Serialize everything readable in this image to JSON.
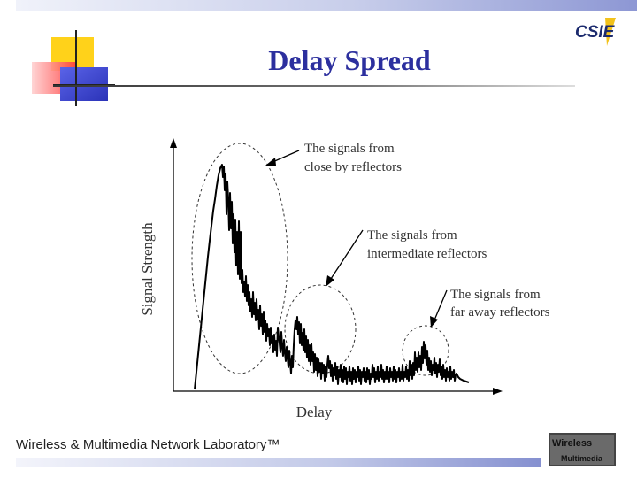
{
  "slide": {
    "title": "Delay Spread",
    "footer": "Wireless & Multimedia Network Laboratory™",
    "logo_text": "CSIE",
    "lab_logo_line1": "Wireless",
    "lab_logo_line2": "Multimedia"
  },
  "figure": {
    "ylabel": "Signal Strength",
    "xlabel": "Delay",
    "annotation_close": [
      "The signals from",
      "close by reflectors"
    ],
    "annotation_intermediate": [
      "The signals from",
      "intermediate reflectors"
    ],
    "annotation_far": [
      "The signals from",
      "far away reflectors"
    ]
  },
  "colors": {
    "title": "#2c2f9e",
    "deco_yellow": "#ffd21a",
    "deco_red": "#ff4a4a",
    "deco_blue": "#3b45d6"
  }
}
